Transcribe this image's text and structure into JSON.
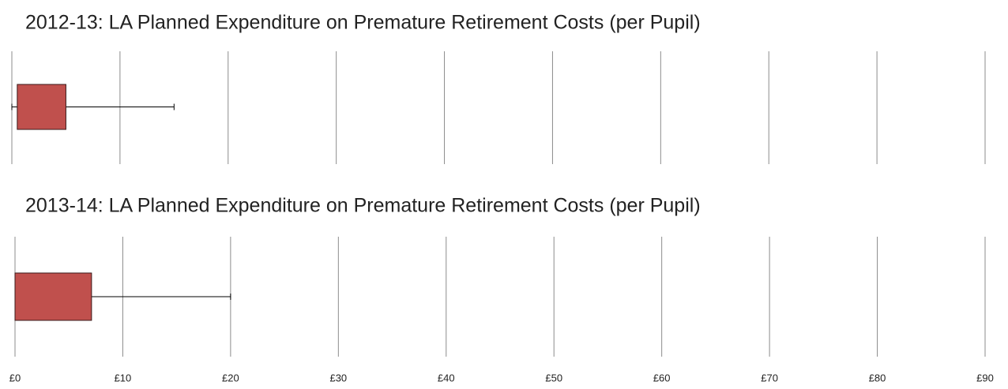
{
  "chart_data": [
    {
      "type": "box",
      "title": "2012-13: LA Planned Expenditure on Premature Retirement Costs (per Pupil)",
      "min": 0,
      "q1": 0.5,
      "q3": 5,
      "max": 15,
      "color": "#c0504d",
      "xlim": [
        0,
        90
      ],
      "xticks": [
        0,
        10,
        20,
        30,
        40,
        50,
        60,
        70,
        80,
        90
      ],
      "grid": true
    },
    {
      "type": "box",
      "title": "2013-14: LA Planned Expenditure on Premature Retirement Costs (per Pupil)",
      "min": 0,
      "q1": 0,
      "q3": 7.1,
      "max": 20,
      "color": "#c0504d",
      "xlim": [
        0,
        90
      ],
      "xticks": [
        {
          "value": 0,
          "label": "£0"
        },
        {
          "value": 10,
          "label": "£10"
        },
        {
          "value": 20,
          "label": "£20"
        },
        {
          "value": 30,
          "label": "£30"
        },
        {
          "value": 40,
          "label": "£40"
        },
        {
          "value": 50,
          "label": "£50"
        },
        {
          "value": 60,
          "label": "£60"
        },
        {
          "value": 70,
          "label": "£70"
        },
        {
          "value": 80,
          "label": "£80"
        },
        {
          "value": 90,
          "label": "£90"
        }
      ],
      "grid": true
    }
  ]
}
